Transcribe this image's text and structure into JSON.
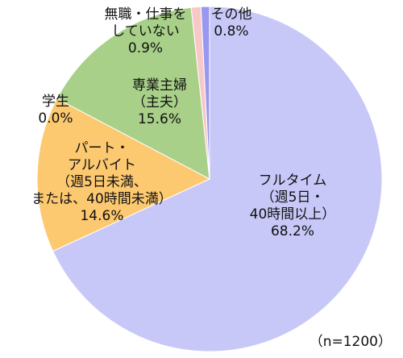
{
  "chart_data": {
    "type": "pie",
    "note": "（n=1200）",
    "slices": [
      {
        "value": 68.2,
        "color": "#c8c8f8",
        "label_lines": [
          "フルタイム",
          "（週5日・",
          "40時間以上）"
        ],
        "pct": "68.2%"
      },
      {
        "value": 14.6,
        "color": "#fcc870",
        "label_lines": [
          "パート・",
          "アルバイト",
          "（週5日未満、",
          "または、40時間未満）"
        ],
        "pct": "14.6%"
      },
      {
        "value": 0.0,
        "color": "#a8d088",
        "label_lines": [
          "学生"
        ],
        "pct": "0.0%"
      },
      {
        "value": 15.6,
        "color": "#a8d088",
        "label_lines": [
          "専業主婦",
          "（主夫）"
        ],
        "pct": "15.6%"
      },
      {
        "value": 0.9,
        "color": "#f8c8c8",
        "label_lines": [
          "無職・仕事を",
          "していない"
        ],
        "pct": "0.9%"
      },
      {
        "value": 0.8,
        "color": "#9898f0",
        "label_lines": [
          "その他"
        ],
        "pct": "0.8%"
      }
    ]
  }
}
